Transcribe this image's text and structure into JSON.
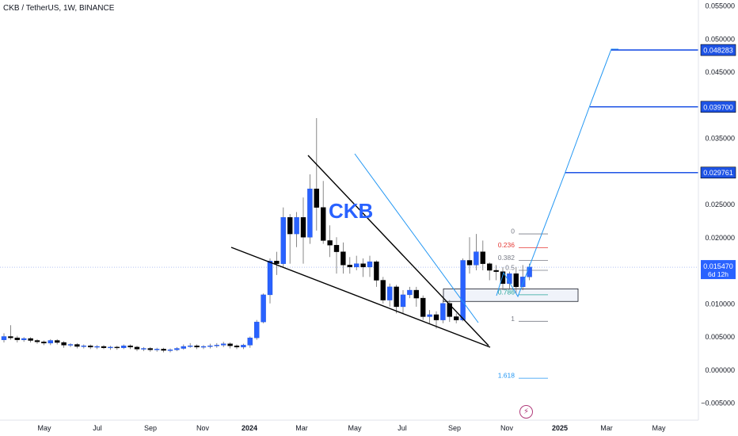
{
  "header": {
    "symbol_line": "CKB / TetherUS, 1W, BINANCE"
  },
  "colors": {
    "up": "#2962ff",
    "down": "#000000",
    "projection": "#2196f3",
    "target_label_bg": "#1e53e5",
    "fib_red": "#e53935",
    "fib_teal": "#26a69a"
  },
  "chart_data": {
    "type": "candlestick",
    "title": "CKB / TetherUS, 1W, BINANCE",
    "ylim": [
      -0.005,
      0.055
    ],
    "y_ticks": [
      "0.055000",
      "0.050000",
      "0.045000",
      "0.040000",
      "0.035000",
      "0.030000",
      "0.025000",
      "0.020000",
      "0.015000",
      "0.010000",
      "0.005000",
      "0.000000",
      "−0.005000"
    ],
    "x_ticks": [
      "May",
      "Jul",
      "Sep",
      "Nov",
      "2024",
      "Mar",
      "May",
      "Jul",
      "Sep",
      "Nov",
      "2025",
      "Mar",
      "May"
    ],
    "x_ticks_bold": [
      "2024",
      "2025"
    ],
    "candles_ohlc": [
      [
        0.0045,
        0.005,
        0.0041,
        0.0055
      ],
      [
        0.005,
        0.0048,
        0.0045,
        0.0067
      ],
      [
        0.0048,
        0.0045,
        0.0041,
        0.0051
      ],
      [
        0.0045,
        0.0047,
        0.0042,
        0.0049
      ],
      [
        0.0047,
        0.0044,
        0.0041,
        0.0049
      ],
      [
        0.0044,
        0.0042,
        0.0039,
        0.0046
      ],
      [
        0.0042,
        0.004,
        0.0037,
        0.0044
      ],
      [
        0.004,
        0.0044,
        0.0037,
        0.0046
      ],
      [
        0.0044,
        0.0041,
        0.0038,
        0.0046
      ],
      [
        0.0041,
        0.0037,
        0.0033,
        0.0043
      ],
      [
        0.0037,
        0.0038,
        0.0034,
        0.004
      ],
      [
        0.0038,
        0.0035,
        0.0032,
        0.004
      ],
      [
        0.0035,
        0.0036,
        0.0032,
        0.0038
      ],
      [
        0.0036,
        0.0034,
        0.0031,
        0.0038
      ],
      [
        0.0034,
        0.0035,
        0.0031,
        0.0037
      ],
      [
        0.0035,
        0.0033,
        0.0031,
        0.0037
      ],
      [
        0.0033,
        0.0034,
        0.003,
        0.0036
      ],
      [
        0.0034,
        0.0033,
        0.003,
        0.0036
      ],
      [
        0.0033,
        0.0036,
        0.0031,
        0.0038
      ],
      [
        0.0036,
        0.0034,
        0.0031,
        0.0038
      ],
      [
        0.0034,
        0.0031,
        0.0028,
        0.0036
      ],
      [
        0.0031,
        0.0032,
        0.0028,
        0.0034
      ],
      [
        0.0032,
        0.003,
        0.0027,
        0.0034
      ],
      [
        0.003,
        0.0031,
        0.0027,
        0.0033
      ],
      [
        0.0031,
        0.0029,
        0.0026,
        0.0033
      ],
      [
        0.0029,
        0.003,
        0.0026,
        0.0032
      ],
      [
        0.003,
        0.0032,
        0.0028,
        0.0034
      ],
      [
        0.0032,
        0.0035,
        0.003,
        0.0038
      ],
      [
        0.0035,
        0.0036,
        0.0033,
        0.004
      ],
      [
        0.0036,
        0.0034,
        0.0031,
        0.0038
      ],
      [
        0.0034,
        0.0035,
        0.0031,
        0.0037
      ],
      [
        0.0035,
        0.0036,
        0.0032,
        0.0039
      ],
      [
        0.0036,
        0.0037,
        0.0033,
        0.004
      ],
      [
        0.0037,
        0.0039,
        0.0034,
        0.0042
      ],
      [
        0.0039,
        0.0036,
        0.0032,
        0.0041
      ],
      [
        0.0036,
        0.0034,
        0.0031,
        0.0038
      ],
      [
        0.0034,
        0.0037,
        0.0031,
        0.0039
      ],
      [
        0.0037,
        0.0048,
        0.0033,
        0.005
      ],
      [
        0.0048,
        0.0072,
        0.0045,
        0.0075
      ],
      [
        0.0072,
        0.0113,
        0.007,
        0.0115
      ],
      [
        0.0113,
        0.0164,
        0.01,
        0.0168
      ],
      [
        0.0164,
        0.016,
        0.0143,
        0.0178
      ],
      [
        0.016,
        0.023,
        0.0155,
        0.0245
      ],
      [
        0.023,
        0.0205,
        0.016,
        0.0235
      ],
      [
        0.0205,
        0.023,
        0.0185,
        0.0238
      ],
      [
        0.023,
        0.02,
        0.016,
        0.026
      ],
      [
        0.02,
        0.0273,
        0.019,
        0.0295
      ],
      [
        0.0273,
        0.0245,
        0.021,
        0.038
      ],
      [
        0.0245,
        0.0195,
        0.019,
        0.0285
      ],
      [
        0.0195,
        0.0188,
        0.017,
        0.0218
      ],
      [
        0.0188,
        0.0178,
        0.0145,
        0.02
      ],
      [
        0.0178,
        0.0158,
        0.0145,
        0.0192
      ],
      [
        0.0158,
        0.0155,
        0.0145,
        0.017
      ],
      [
        0.0155,
        0.016,
        0.015,
        0.0172
      ],
      [
        0.016,
        0.0155,
        0.014,
        0.0168
      ],
      [
        0.0155,
        0.0163,
        0.014,
        0.0172
      ],
      [
        0.0163,
        0.0135,
        0.0125,
        0.0165
      ],
      [
        0.0135,
        0.0105,
        0.01,
        0.014
      ],
      [
        0.0105,
        0.0125,
        0.0095,
        0.013
      ],
      [
        0.0125,
        0.0095,
        0.0085,
        0.0128
      ],
      [
        0.0095,
        0.0113,
        0.0085,
        0.012
      ],
      [
        0.0113,
        0.012,
        0.0108,
        0.0125
      ],
      [
        0.012,
        0.0108,
        0.0095,
        0.0125
      ],
      [
        0.0108,
        0.008,
        0.0075,
        0.0112
      ],
      [
        0.008,
        0.0083,
        0.007,
        0.009
      ],
      [
        0.0083,
        0.0075,
        0.0062,
        0.0088
      ],
      [
        0.0075,
        0.01,
        0.007,
        0.0105
      ],
      [
        0.01,
        0.008,
        0.0072,
        0.0105
      ],
      [
        0.008,
        0.0075,
        0.007,
        0.0085
      ],
      [
        0.0075,
        0.0165,
        0.0073,
        0.0168
      ],
      [
        0.0165,
        0.0158,
        0.0145,
        0.02
      ],
      [
        0.0158,
        0.0178,
        0.015,
        0.0205
      ],
      [
        0.0178,
        0.016,
        0.015,
        0.0195
      ],
      [
        0.016,
        0.015,
        0.0135,
        0.0162
      ],
      [
        0.015,
        0.0148,
        0.0135,
        0.0158
      ],
      [
        0.0148,
        0.013,
        0.012,
        0.0155
      ],
      [
        0.013,
        0.0145,
        0.0122,
        0.0148
      ],
      [
        0.0145,
        0.0125,
        0.0115,
        0.0155
      ],
      [
        0.0125,
        0.014,
        0.012,
        0.0158
      ],
      [
        0.014,
        0.0155,
        0.0135,
        0.016
      ]
    ],
    "price_labels": [
      {
        "value": 0.048283,
        "text": "0.048283",
        "style": "target"
      },
      {
        "value": 0.0397,
        "text": "0.039700",
        "style": "target"
      },
      {
        "value": 0.029761,
        "text": "0.029761",
        "style": "target"
      },
      {
        "value": 0.01547,
        "text": "0.015470",
        "text2": "6d 12h",
        "style": "current"
      }
    ],
    "fib_levels": [
      {
        "ratio": "0",
        "value": 0.0205,
        "color": "#787b86"
      },
      {
        "ratio": "0.236",
        "value": 0.0184,
        "color": "#e53935"
      },
      {
        "ratio": "0.382",
        "value": 0.0165,
        "color": "#787b86"
      },
      {
        "ratio": "0.5",
        "value": 0.015,
        "color": "#787b86"
      },
      {
        "ratio": "0.786",
        "value": 0.0113,
        "color": "#26a69a"
      },
      {
        "ratio": "1",
        "value": 0.0073,
        "color": "#787b86"
      },
      {
        "ratio": "1.618",
        "value": -0.0013,
        "color": "#2196f3"
      }
    ],
    "symbol_watermark": "CKB"
  }
}
